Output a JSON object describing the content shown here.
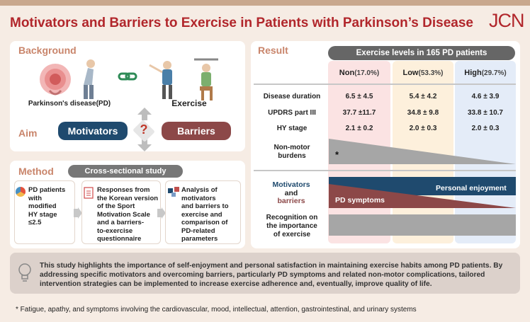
{
  "title": "Motivators and Barriers to Exercise in Patients with Parkinson’s Disease",
  "journal": "JCN",
  "background": {
    "header": "Background",
    "pd_label": "Parkinson's disease(PD)",
    "exercise_label": "Exercise"
  },
  "aim": {
    "header": "Aim",
    "motivators": "Motivators",
    "question": "?",
    "barriers": "Barriers"
  },
  "method": {
    "header": "Method",
    "design": "Cross-sectional study",
    "steps": [
      [
        "PD patients",
        "with",
        "modified",
        "HY stage",
        "≤2.5"
      ],
      [
        "Responses from",
        "the Korean version",
        "of the Sport",
        "Motivation Scale",
        "and a barriers-",
        "to-exercise",
        "questionnaire"
      ],
      [
        "Analysis of",
        "motivators",
        "and barriers to",
        "exercise and",
        "comparison of",
        "PD-related",
        "parameters"
      ]
    ]
  },
  "result": {
    "header": "Result",
    "banner": "Exercise levels in 165 PD patients",
    "groups": [
      {
        "name": "Non",
        "pct": "(17.0%)",
        "color": "#fbe3e3"
      },
      {
        "name": "Low",
        "pct": "(53.3%)",
        "color": "#fdf0dc"
      },
      {
        "name": "High",
        "pct": "(29.7%)",
        "color": "#e4ecf8"
      }
    ],
    "rows": [
      {
        "label": "Disease duration",
        "values": [
          "6.5 ± 4.5",
          "5.4 ± 4.2",
          "4.6 ± 3.9"
        ]
      },
      {
        "label": "UPDRS part III",
        "values": [
          "37.7 ±11.7",
          "34.8 ± 9.8",
          "33.8 ± 10.7"
        ]
      },
      {
        "label": "HY stage",
        "values": [
          "2.1 ± 0.2",
          "2.0 ± 0.3",
          "2.0 ± 0.3"
        ]
      }
    ],
    "nonmotor": {
      "label_line1": "Non-motor",
      "label_line2": "burdens",
      "asterisk": "*"
    },
    "motivators_line": "Motivators",
    "and_line": "and",
    "barriers_line": "barriers",
    "personal_enjoyment": "Personal enjoyment",
    "pd_symptoms": "PD symptoms",
    "recognition": [
      "Recognition on",
      "the importance",
      "of exercise"
    ]
  },
  "conclusion": "This study highlights the importance of self-enjoyment and personal satisfaction in maintaining exercise habits among PD patients. By addressing specific motivators and overcoming barriers, particularly PD symptoms and related non-motor complications, tailored intervention strategies can be implemented to increase exercise adherence and, eventually, improve quality of life.",
  "footnote": "* Fatigue, apathy, and symptoms involving the cardiovascular, mood, intellectual, attention, gastrointestinal, and urinary systems",
  "colors": {
    "motivator_blue": "#1f4a6e",
    "barrier_red": "#8c4848",
    "title_red": "#b1262b",
    "gray": "#a6a6a6"
  }
}
